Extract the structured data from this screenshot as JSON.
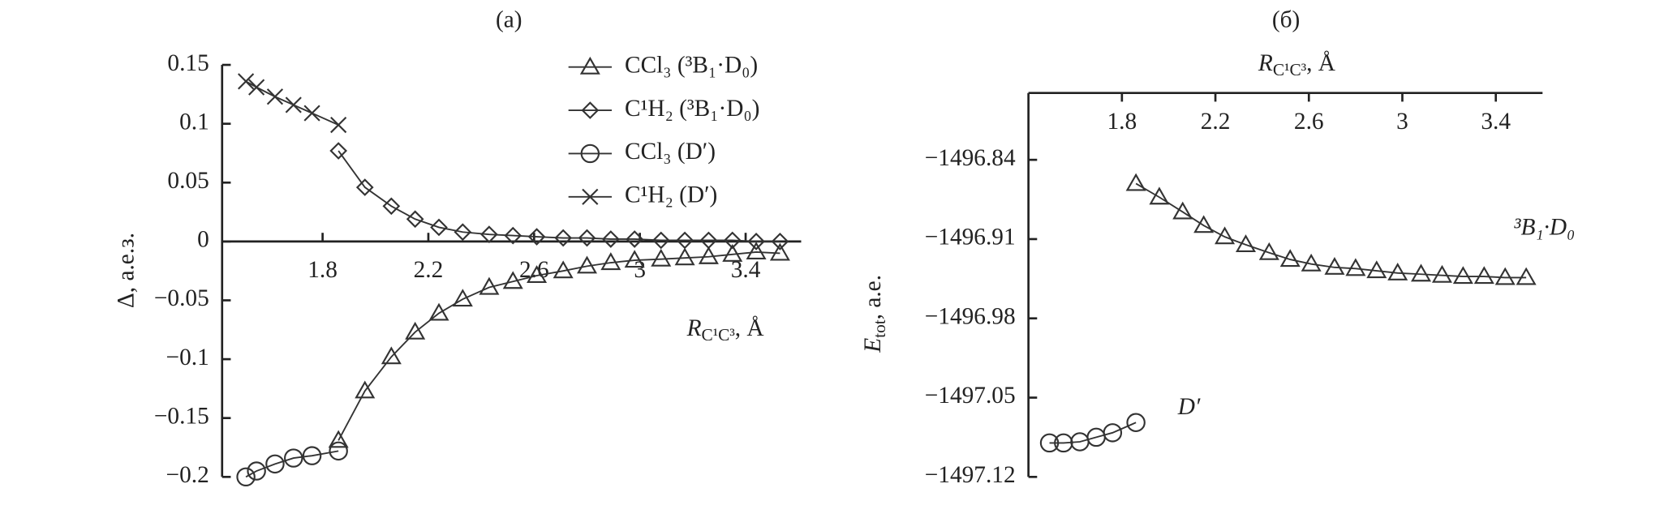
{
  "chart_data": [
    {
      "type": "line",
      "title": "(а)",
      "xlabel": {
        "text": "R",
        "sub": "C¹C³",
        "suffix": ", Å"
      },
      "ylabel": "Δ, а.е.з.",
      "xlim": [
        1.42,
        3.61
      ],
      "ylim": [
        -0.2,
        0.15
      ],
      "xticks": [
        1.8,
        2.2,
        2.6,
        3,
        3.4
      ],
      "yticks": [
        0.15,
        0.1,
        0.05,
        0,
        {
          "value": -0.05,
          "label": "−0.05"
        },
        {
          "value": -0.1,
          "label": "−0.1"
        },
        {
          "value": -0.15,
          "label": "−0.15"
        },
        {
          "value": -0.2,
          "label": "−0.2"
        }
      ],
      "series": [
        {
          "name": "CCl₃ (³B₁·D₀)",
          "marker": "triangle",
          "color": "#333",
          "x": [
            1.86,
            1.96,
            2.06,
            2.15,
            2.24,
            2.33,
            2.43,
            2.52,
            2.61,
            2.71,
            2.8,
            2.89,
            2.98,
            3.08,
            3.17,
            3.26,
            3.35,
            3.44,
            3.53
          ],
          "values": [
            -0.169,
            -0.127,
            -0.098,
            -0.077,
            -0.061,
            -0.049,
            -0.039,
            -0.034,
            -0.029,
            -0.025,
            -0.021,
            -0.018,
            -0.016,
            -0.015,
            -0.014,
            -0.013,
            -0.011,
            -0.009,
            -0.01
          ]
        },
        {
          "name": "C¹H₂ (³B₁·D₀)",
          "marker": "diamond",
          "color": "#333",
          "x": [
            1.86,
            1.96,
            2.06,
            2.15,
            2.24,
            2.33,
            2.43,
            2.52,
            2.61,
            2.71,
            2.8,
            2.89,
            2.98,
            3.08,
            3.17,
            3.26,
            3.35,
            3.44,
            3.53
          ],
          "values": [
            0.077,
            0.046,
            0.03,
            0.019,
            0.012,
            0.008,
            0.006,
            0.005,
            0.004,
            0.003,
            0.003,
            0.002,
            0.002,
            0.001,
            0.001,
            0.001,
            0.001,
            0,
            0
          ]
        },
        {
          "name": "CCl₃ (D′)",
          "marker": "circle",
          "color": "#333",
          "x": [
            1.51,
            1.55,
            1.62,
            1.69,
            1.76,
            1.86
          ],
          "values": [
            -0.2,
            -0.195,
            -0.189,
            -0.184,
            -0.182,
            -0.178
          ]
        },
        {
          "name": "C¹H₂ (D′)",
          "marker": "cross",
          "color": "#333",
          "x": [
            1.51,
            1.55,
            1.62,
            1.69,
            1.76,
            1.86
          ],
          "values": [
            0.136,
            0.131,
            0.123,
            0.116,
            0.109,
            0.099
          ]
        }
      ]
    },
    {
      "type": "line",
      "title": "(б)",
      "xlabel": {
        "text": "R",
        "sub": "C¹C³",
        "suffix": ", Å"
      },
      "ylabel": {
        "text": "E",
        "sub": "tot",
        "suffix": ", а.е."
      },
      "xlim": [
        1.4,
        3.6
      ],
      "ylim": [
        -1497.12,
        -1496.781
      ],
      "xticks": [
        1.8,
        2.2,
        2.6,
        3,
        3.4
      ],
      "yticks": [
        {
          "value": -1496.84,
          "label": "−1496.84"
        },
        {
          "value": -1496.91,
          "label": "−1496.91"
        },
        {
          "value": -1496.98,
          "label": "−1496.98"
        },
        {
          "value": -1497.05,
          "label": "−1497.05"
        },
        {
          "value": -1497.12,
          "label": "−1497.12"
        }
      ],
      "annotations": [
        "³B₁·D₀",
        "D′"
      ],
      "series": [
        {
          "marker": "triangle",
          "color": "#333",
          "x": [
            1.86,
            1.96,
            2.06,
            2.15,
            2.24,
            2.33,
            2.43,
            2.52,
            2.61,
            2.71,
            2.8,
            2.89,
            2.98,
            3.08,
            3.17,
            3.26,
            3.35,
            3.44,
            3.53
          ],
          "values": [
            -1496.861,
            -1496.873,
            -1496.886,
            -1496.898,
            -1496.908,
            -1496.915,
            -1496.922,
            -1496.928,
            -1496.932,
            -1496.935,
            -1496.936,
            -1496.938,
            -1496.94,
            -1496.941,
            -1496.942,
            -1496.943,
            -1496.943,
            -1496.944,
            -1496.944
          ]
        },
        {
          "marker": "circle",
          "color": "#333",
          "x": [
            1.49,
            1.55,
            1.62,
            1.69,
            1.76,
            1.86
          ],
          "values": [
            -1497.09,
            -1497.09,
            -1497.089,
            -1497.085,
            -1497.081,
            -1497.072
          ]
        }
      ]
    }
  ]
}
